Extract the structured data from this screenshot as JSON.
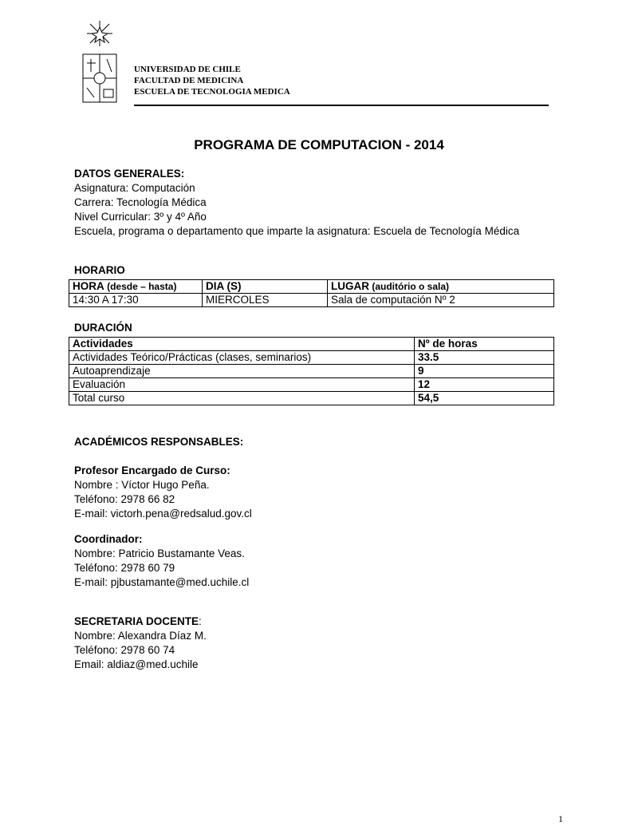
{
  "header": {
    "institution": [
      "UNIVERSIDAD DE CHILE",
      "FACULTAD DE MEDICINA",
      "ESCUELA DE TECNOLOGIA MEDICA"
    ]
  },
  "title": "PROGRAMA DE COMPUTACION - 2014",
  "datos_generales": {
    "heading": "DATOS GENERALES:",
    "lines": [
      "Asignatura: Computación",
      "Carrera: Tecnología Médica",
      "Nivel Curricular: 3º y 4º Año",
      "Escuela, programa o departamento que imparte la asignatura: Escuela de Tecnología Médica"
    ]
  },
  "horario": {
    "heading": "HORARIO",
    "headers": [
      {
        "main": "HORA",
        "sub": " (desde – hasta)"
      },
      {
        "main": "DIA (S)",
        "sub": ""
      },
      {
        "main": "LUGAR",
        "sub": " (auditório o sala)"
      }
    ],
    "row": [
      "14:30 A 17:30",
      "MIERCOLES",
      "Sala de computación Nº 2"
    ]
  },
  "duracion": {
    "heading": "DURACIÓN",
    "headers": [
      "Actividades",
      "Nº de horas"
    ],
    "rows": [
      [
        "Actividades Teórico/Prácticas (clases, seminarios)",
        "33.5"
      ],
      [
        "Autoaprendizaje",
        "9"
      ],
      [
        "Evaluación",
        "12"
      ],
      [
        "Total curso",
        "54,5"
      ]
    ]
  },
  "academicos": {
    "heading": "ACADÉMICOS RESPONSABLES:",
    "profesor": {
      "heading": "Profesor Encargado de Curso:",
      "lines": [
        "Nombre : Víctor Hugo Peña.",
        "Teléfono: 2978 66 82",
        "E-mail:  victorh.pena@redsalud.gov.cl"
      ]
    },
    "coordinador": {
      "heading": "Coordinador:",
      "lines": [
        "Nombre: Patricio Bustamante Veas.",
        "Teléfono: 2978 60 79",
        "E-mail: pjbustamante@med.uchile.cl"
      ]
    },
    "secretaria": {
      "heading": "SECRETARIA DOCENTE",
      "colon": ":",
      "lines": [
        "Nombre: Alexandra Díaz M.",
        "Teléfono: 2978 60 74",
        "Email: aldiaz@med.uchile"
      ]
    }
  },
  "page_number": "1"
}
